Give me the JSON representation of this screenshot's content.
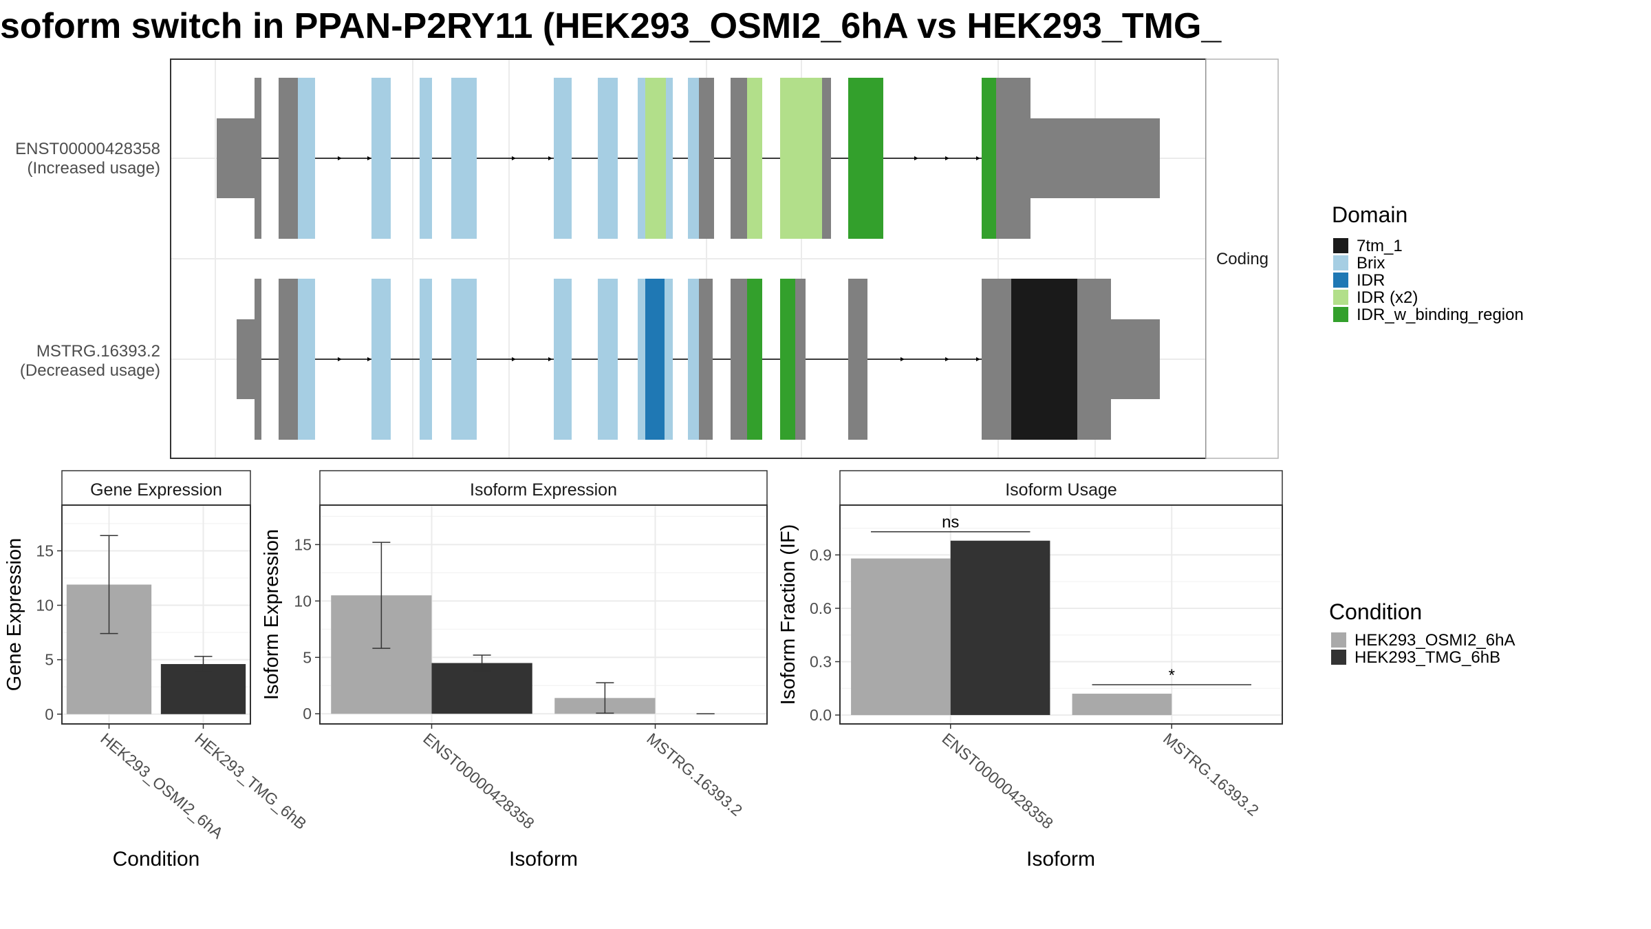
{
  "colors": {
    "exon": "#808080",
    "7tm_1": "#1a1a1a",
    "Brix": "#a6cee3",
    "IDR": "#1f78b4",
    "IDR (x2)": "#b2df8a",
    "IDR_w_binding_region": "#33a02c",
    "cond_a": "#a9a9a9",
    "cond_b": "#333333",
    "grid": "#ebebeb",
    "panel_border": "#333333",
    "strip_fill": "#ffffff"
  },
  "title": "soform switch in PPAN-P2RY11 (HEK293_OSMI2_6hA vs HEK293_TMG_",
  "transcript_panel": {
    "facet_label": "Coding",
    "transcripts": [
      {
        "name": "ENST00000428358",
        "usage": "(Increased usage)"
      },
      {
        "name": "MSTRG.16393.2",
        "usage": "(Decreased usage)"
      }
    ]
  },
  "domain_legend": {
    "title": "Domain",
    "items": [
      "7tm_1",
      "Brix",
      "IDR",
      "IDR (x2)",
      "IDR_w_binding_region"
    ]
  },
  "condition_legend": {
    "title": "Condition",
    "items": [
      "HEK293_OSMI2_6hA",
      "HEK293_TMG_6hB"
    ]
  },
  "chart_data": [
    {
      "type": "bar",
      "title": "Gene Expression",
      "xlabel": "Condition",
      "ylabel": "Gene Expression",
      "categories": [
        "HEK293_OSMI2_6hA",
        "HEK293_TMG_6hB"
      ],
      "values": [
        11.9,
        4.6
      ],
      "errors": [
        [
          7.4,
          16.4
        ],
        [
          3.9,
          5.3
        ]
      ],
      "yticks": [
        0,
        5,
        10,
        15
      ],
      "ylim": [
        -0.9,
        19.2
      ]
    },
    {
      "type": "bar",
      "title": "Isoform Expression",
      "xlabel": "Isoform",
      "ylabel": "Isoform Expression",
      "categories": [
        "ENST00000428358",
        "MSTRG.16393.2"
      ],
      "series": [
        {
          "name": "HEK293_OSMI2_6hA",
          "values": [
            10.5,
            1.4
          ],
          "errors": [
            [
              5.8,
              15.2
            ],
            [
              0.05,
              2.75
            ]
          ]
        },
        {
          "name": "HEK293_TMG_6hB",
          "values": [
            4.5,
            0.0
          ],
          "errors": [
            [
              3.8,
              5.2
            ],
            [
              0.0,
              0.0
            ]
          ]
        }
      ],
      "yticks": [
        0,
        5,
        10,
        15
      ],
      "ylim": [
        -0.9,
        18.5
      ]
    },
    {
      "type": "bar",
      "title": "Isoform Usage",
      "xlabel": "Isoform",
      "ylabel": "Isoform Fraction (IF)",
      "categories": [
        "ENST00000428358",
        "MSTRG.16393.2"
      ],
      "series": [
        {
          "name": "HEK293_OSMI2_6hA",
          "values": [
            0.88,
            0.12
          ]
        },
        {
          "name": "HEK293_TMG_6hB",
          "values": [
            0.98,
            0.0
          ]
        }
      ],
      "significance": [
        "ns",
        "*"
      ],
      "yticks": [
        "0.0",
        "0.3",
        "0.6",
        "0.9"
      ],
      "ylim": [
        -0.05,
        1.18
      ]
    }
  ]
}
